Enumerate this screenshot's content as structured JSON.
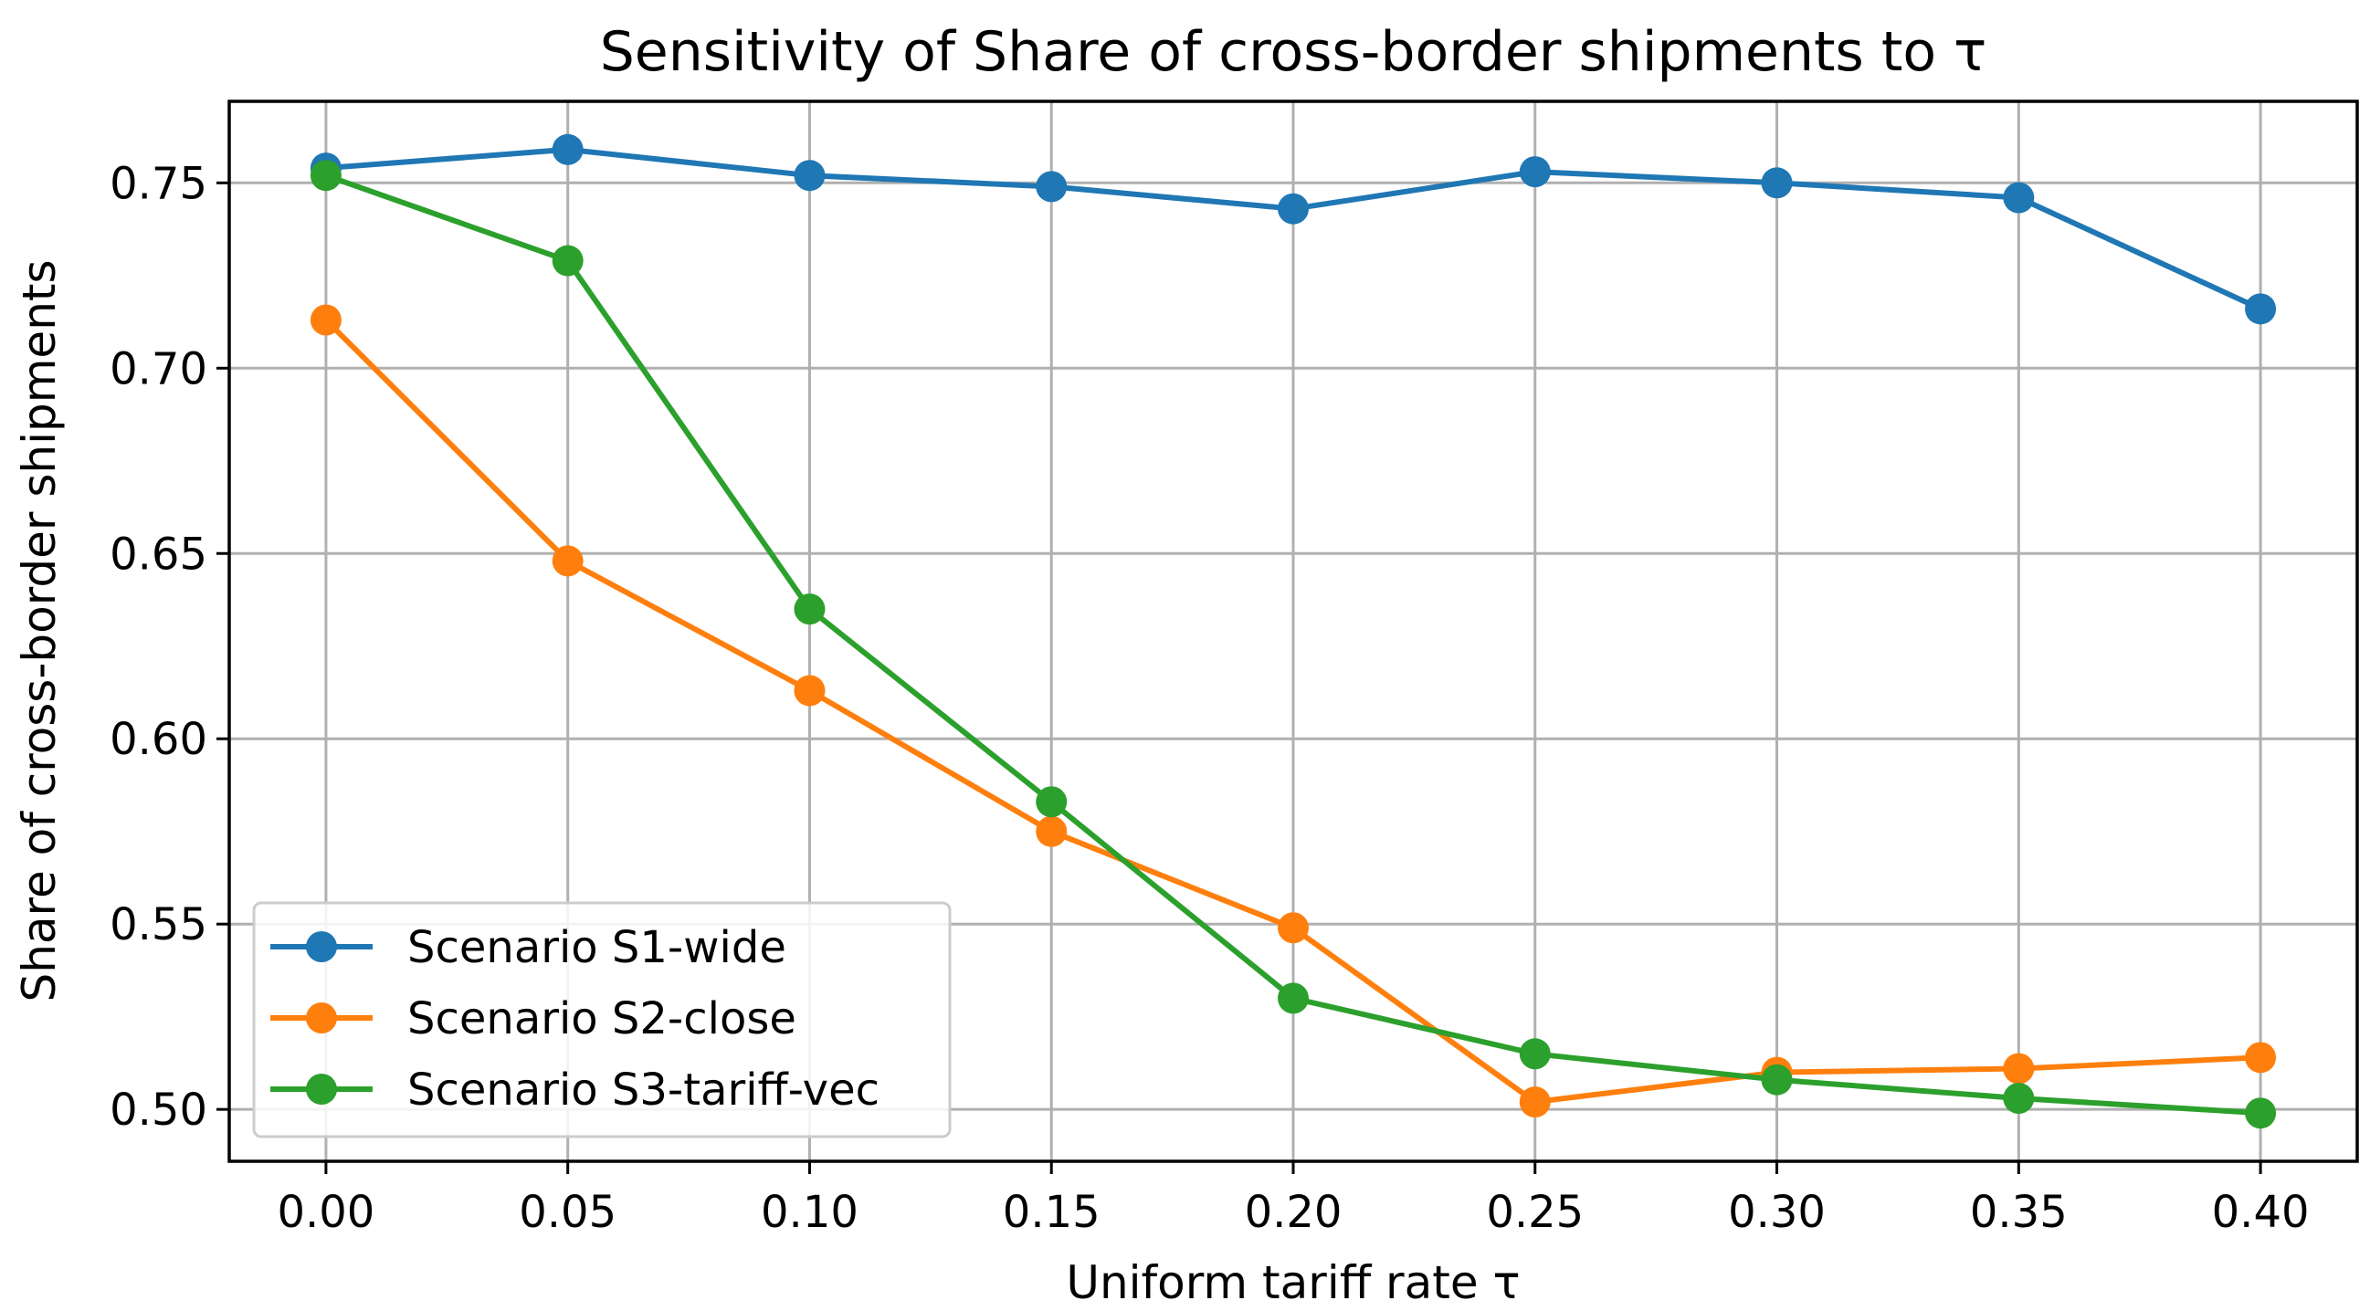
{
  "chart_data": {
    "type": "line",
    "title": "Sensitivity of Share of cross-border shipments to τ",
    "xlabel": "Uniform tariff rate τ",
    "ylabel": "Share of cross-border shipments",
    "x": [
      0.0,
      0.05,
      0.1,
      0.15,
      0.2,
      0.25,
      0.3,
      0.35,
      0.4
    ],
    "xticks": [
      "0.00",
      "0.05",
      "0.10",
      "0.15",
      "0.20",
      "0.25",
      "0.30",
      "0.35",
      "0.40"
    ],
    "yticks": [
      "0.50",
      "0.55",
      "0.60",
      "0.65",
      "0.70",
      "0.75"
    ],
    "ytick_values": [
      0.5,
      0.55,
      0.6,
      0.65,
      0.7,
      0.75
    ],
    "xlim": [
      -0.02,
      0.42
    ],
    "ylim": [
      0.486,
      0.772
    ],
    "grid": true,
    "legend_position": "lower-left",
    "series": [
      {
        "name": "Scenario S1-wide",
        "color": "#1f77b4",
        "values": [
          0.754,
          0.759,
          0.752,
          0.749,
          0.743,
          0.753,
          0.75,
          0.746,
          0.716
        ]
      },
      {
        "name": "Scenario S2-close",
        "color": "#ff7f0e",
        "values": [
          0.713,
          0.648,
          0.613,
          0.575,
          0.549,
          0.502,
          0.51,
          0.511,
          0.514
        ]
      },
      {
        "name": "Scenario S3-tariff-vec",
        "color": "#2ca02c",
        "values": [
          0.752,
          0.729,
          0.635,
          0.583,
          0.53,
          0.515,
          0.508,
          0.503,
          0.499
        ]
      }
    ]
  }
}
